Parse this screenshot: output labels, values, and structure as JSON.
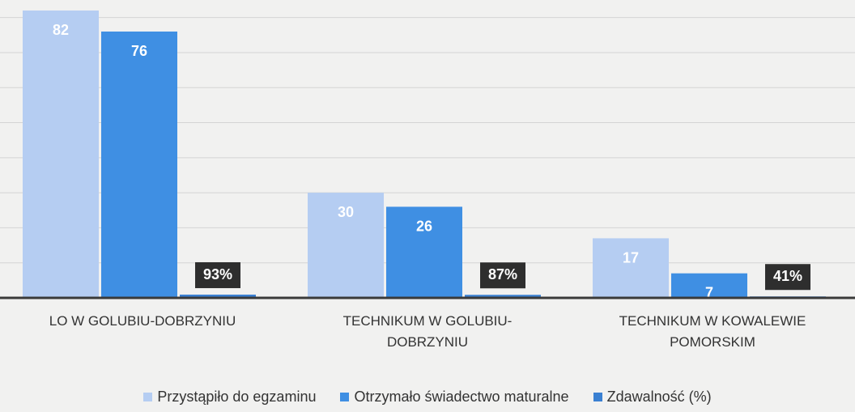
{
  "chart_data": {
    "type": "bar",
    "categories": [
      "LO W GOLUBIU-DOBRZYNIU",
      "TECHNIKUM W GOLUBIU-DOBRZYNIU",
      "TECHNIKUM W KOWALEWIE POMORSKIM"
    ],
    "series": [
      {
        "name": "Przystąpiło do egzaminu",
        "color": "#b5cdf2",
        "values": [
          82,
          30,
          17
        ]
      },
      {
        "name": "Otrzymało świadectwo maturalne",
        "color": "#3f8fe3",
        "values": [
          76,
          26,
          7
        ]
      },
      {
        "name": "Zdawalność (%)",
        "color": "#3a80d2",
        "values": [
          0.93,
          0.87,
          0.41
        ],
        "value_labels": [
          "93%",
          "87%",
          "41%"
        ]
      }
    ],
    "ylim": [
      0,
      85
    ],
    "yticks": [
      0,
      10,
      20,
      30,
      40,
      50,
      60,
      70,
      80
    ],
    "grid": true,
    "legend": "bottom"
  }
}
